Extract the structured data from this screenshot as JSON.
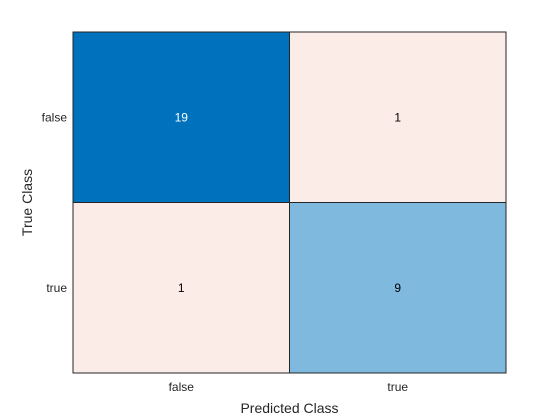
{
  "chart_data": {
    "type": "heatmap",
    "subtype": "confusion-matrix",
    "title": "",
    "xlabel": "Predicted Class",
    "ylabel": "True Class",
    "x_categories": [
      "false",
      "true"
    ],
    "y_categories": [
      "false",
      "true"
    ],
    "values": [
      [
        19,
        1
      ],
      [
        1,
        9
      ]
    ],
    "colors": {
      "high": "#0072bd",
      "mid": "#80b9de",
      "low": "#fcece8",
      "text_on_dark": "#ffffff",
      "text_on_light": "#000000"
    }
  }
}
